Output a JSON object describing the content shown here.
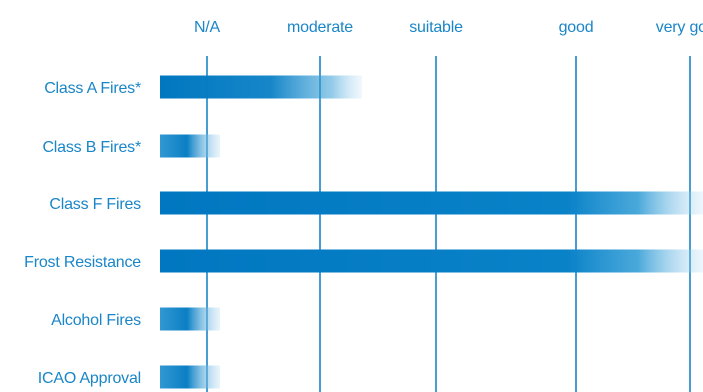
{
  "chart_data": {
    "type": "bar",
    "orientation": "horizontal",
    "title": "",
    "xlabel": "",
    "ylabel": "",
    "scale_levels": [
      "N/A",
      "moderate",
      "suitable",
      "good",
      "very good"
    ],
    "categories": [
      "Class A Fires*",
      "Class B Fires*",
      "Class F Fires",
      "Frost Resistance",
      "Alcohol Fires",
      "ICAO Approval"
    ],
    "values": [
      "moderate",
      "N/A",
      "very good",
      "very good",
      "N/A",
      "N/A"
    ],
    "grid": true,
    "legend": "none"
  },
  "colors": {
    "bar": "#0077c0",
    "text": "#1a86c7",
    "gridline": "#1a86c7",
    "background": "#ffffff"
  }
}
